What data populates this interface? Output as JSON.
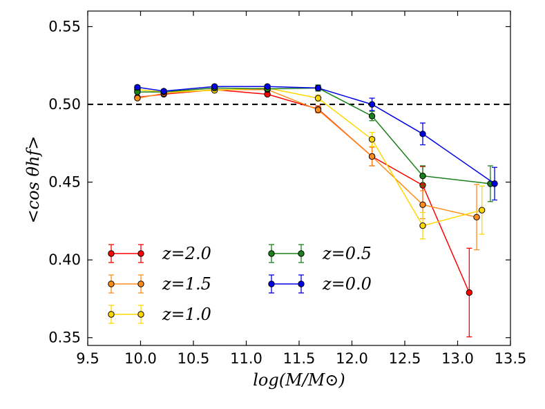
{
  "chart_data": {
    "type": "line",
    "xlabel": "log(M/M⊙)",
    "ylabel": "<cos θhf>",
    "xlim": [
      9.5,
      13.5
    ],
    "ylim": [
      0.345,
      0.56
    ],
    "x_ticks": [
      "9.5",
      "10.0",
      "10.5",
      "11.0",
      "11.5",
      "12.0",
      "12.5",
      "13.0",
      "13.5"
    ],
    "y_ticks": [
      "0.35",
      "0.40",
      "0.45",
      "0.50",
      "0.55"
    ],
    "reference_line": 0.5,
    "legend_placement": "lower-left",
    "series": [
      {
        "name": "z=2.0",
        "color": "#ff0000",
        "points": [
          {
            "x": 9.97,
            "y": 0.5045,
            "err": 0.001
          },
          {
            "x": 10.22,
            "y": 0.5065,
            "err": 0.001
          },
          {
            "x": 10.7,
            "y": 0.5095,
            "err": 0.001
          },
          {
            "x": 11.2,
            "y": 0.5065,
            "err": 0.001
          },
          {
            "x": 11.68,
            "y": 0.497,
            "err": 0.002
          },
          {
            "x": 12.19,
            "y": 0.4665,
            "err": 0.006
          },
          {
            "x": 12.67,
            "y": 0.448,
            "err": 0.012
          },
          {
            "x": 13.11,
            "y": 0.379,
            "err": 0.0285
          }
        ]
      },
      {
        "name": "z=1.5",
        "color": "#ff8c1a",
        "points": [
          {
            "x": 9.97,
            "y": 0.504,
            "err": 0.001
          },
          {
            "x": 10.22,
            "y": 0.507,
            "err": 0.001
          },
          {
            "x": 10.7,
            "y": 0.5095,
            "err": 0.001
          },
          {
            "x": 11.2,
            "y": 0.5095,
            "err": 0.001
          },
          {
            "x": 11.68,
            "y": 0.4965,
            "err": 0.002
          },
          {
            "x": 12.19,
            "y": 0.4665,
            "err": 0.006
          },
          {
            "x": 12.67,
            "y": 0.4355,
            "err": 0.009
          },
          {
            "x": 13.18,
            "y": 0.4275,
            "err": 0.021
          }
        ]
      },
      {
        "name": "z=1.0",
        "color": "#ffd700",
        "points": [
          {
            "x": 9.97,
            "y": 0.5095,
            "err": 0.001
          },
          {
            "x": 10.22,
            "y": 0.508,
            "err": 0.001
          },
          {
            "x": 10.7,
            "y": 0.509,
            "err": 0.001
          },
          {
            "x": 11.2,
            "y": 0.5105,
            "err": 0.001
          },
          {
            "x": 11.68,
            "y": 0.504,
            "err": 0.002
          },
          {
            "x": 12.19,
            "y": 0.4775,
            "err": 0.0045
          },
          {
            "x": 12.67,
            "y": 0.422,
            "err": 0.0085
          },
          {
            "x": 13.23,
            "y": 0.432,
            "err": 0.0155
          }
        ]
      },
      {
        "name": "z=0.5",
        "color": "#1a801a",
        "points": [
          {
            "x": 9.97,
            "y": 0.508,
            "err": 0.001
          },
          {
            "x": 10.22,
            "y": 0.508,
            "err": 0.001
          },
          {
            "x": 10.7,
            "y": 0.5105,
            "err": 0.001
          },
          {
            "x": 11.2,
            "y": 0.51,
            "err": 0.001
          },
          {
            "x": 11.68,
            "y": 0.5105,
            "err": 0.002
          },
          {
            "x": 12.19,
            "y": 0.4925,
            "err": 0.003
          },
          {
            "x": 12.67,
            "y": 0.454,
            "err": 0.0065
          },
          {
            "x": 13.31,
            "y": 0.449,
            "err": 0.0115
          }
        ]
      },
      {
        "name": "z=0.0",
        "color": "#0000e6",
        "points": [
          {
            "x": 9.97,
            "y": 0.511,
            "err": 0.001
          },
          {
            "x": 10.22,
            "y": 0.5085,
            "err": 0.001
          },
          {
            "x": 10.7,
            "y": 0.5115,
            "err": 0.001
          },
          {
            "x": 11.2,
            "y": 0.5115,
            "err": 0.001
          },
          {
            "x": 11.68,
            "y": 0.5105,
            "err": 0.0015
          },
          {
            "x": 12.19,
            "y": 0.5,
            "err": 0.004
          },
          {
            "x": 12.67,
            "y": 0.481,
            "err": 0.007
          },
          {
            "x": 13.35,
            "y": 0.449,
            "err": 0.0105
          }
        ]
      }
    ]
  }
}
